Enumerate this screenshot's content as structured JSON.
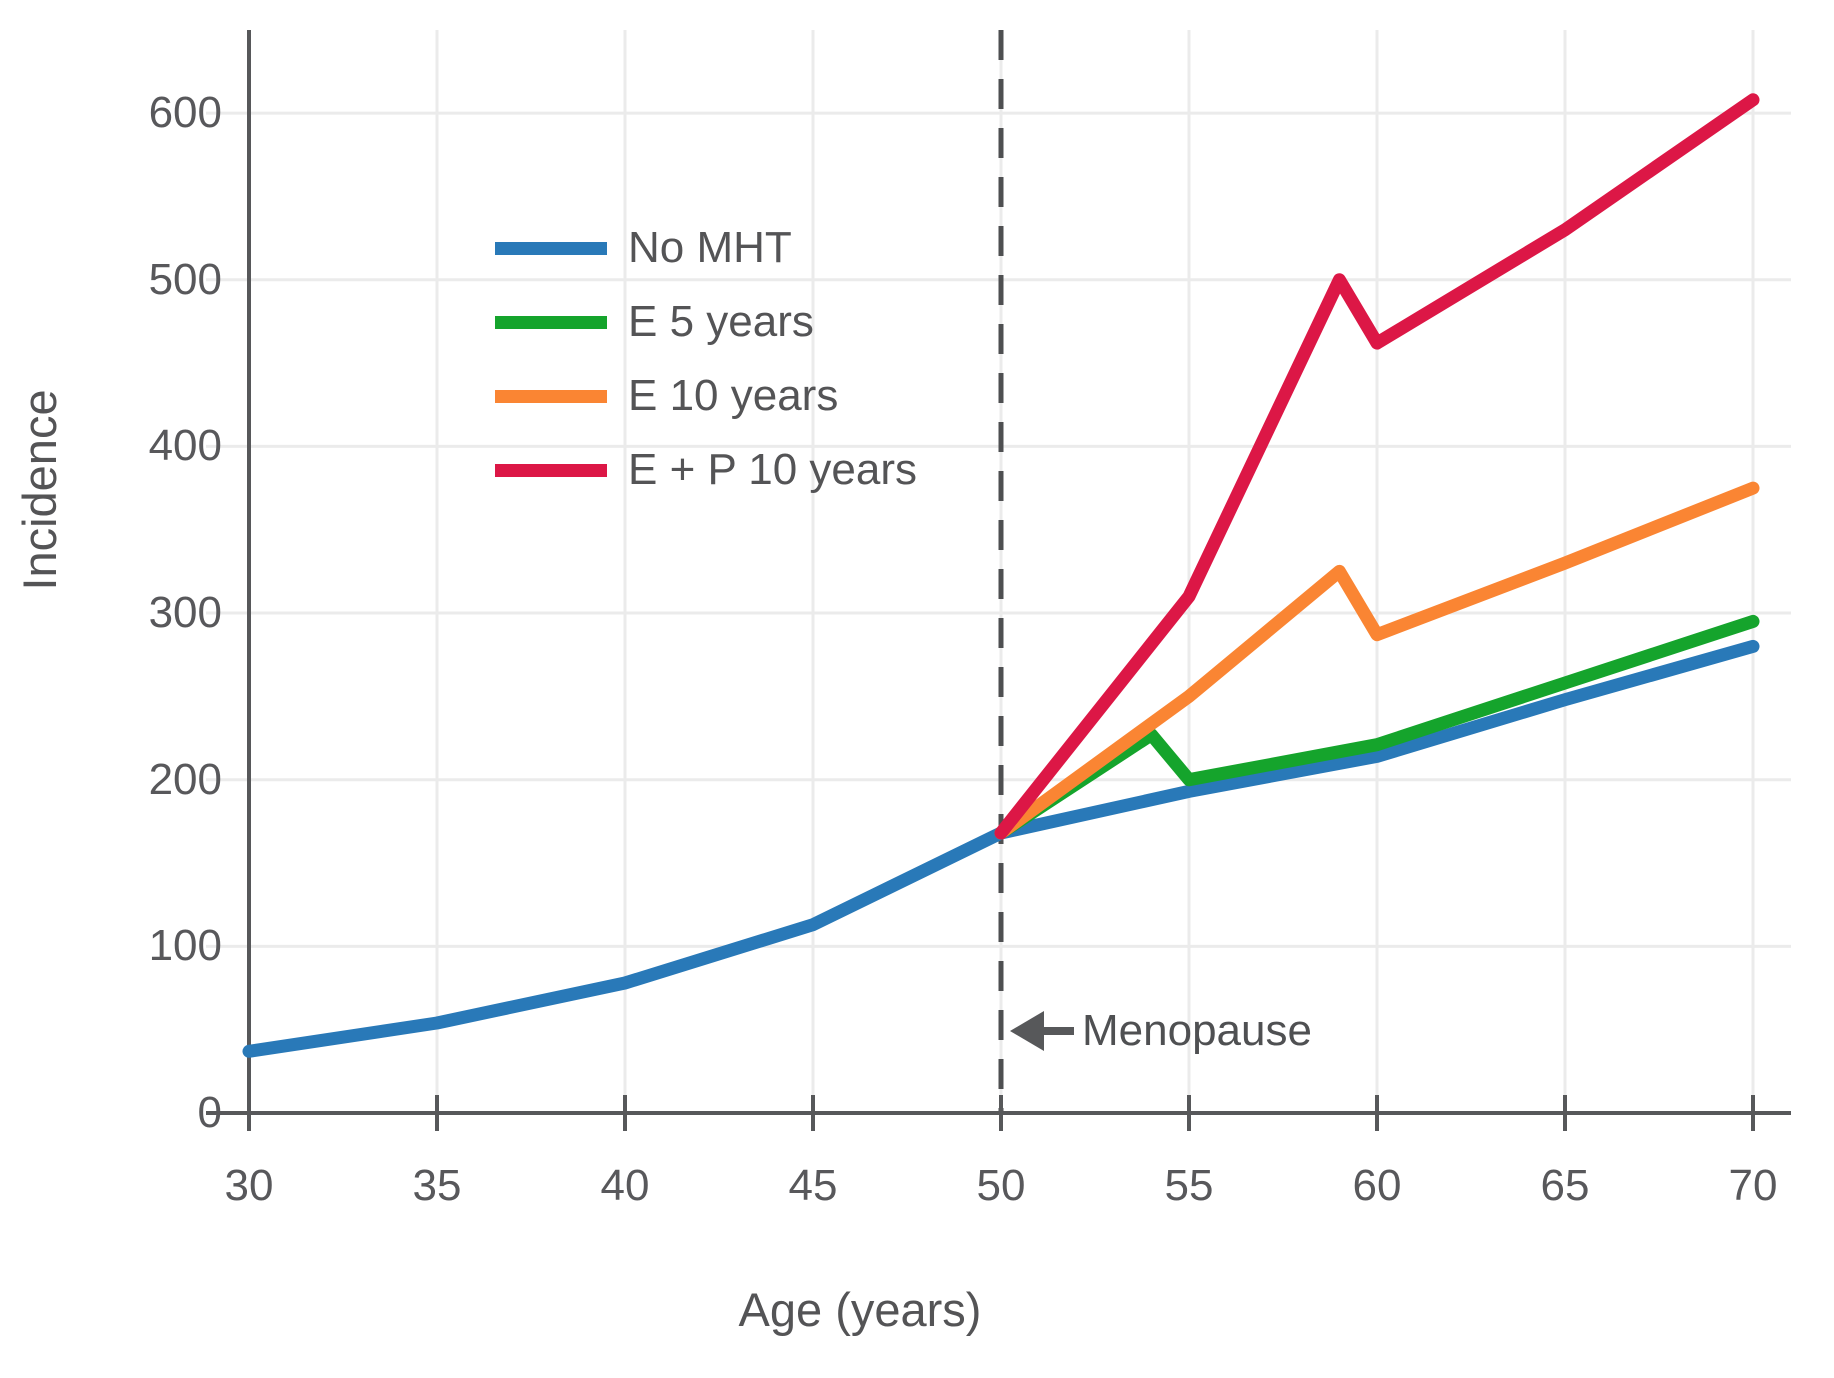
{
  "chart_data": {
    "type": "line",
    "title": "",
    "xlabel": "Age (years)",
    "ylabel": "Incidence",
    "xlim": [
      30,
      70
    ],
    "ylim": [
      0,
      650
    ],
    "x_ticks": [
      30,
      35,
      40,
      45,
      50,
      55,
      60,
      65,
      70
    ],
    "y_ticks": [
      0,
      100,
      200,
      300,
      400,
      500,
      600
    ],
    "grid": true,
    "legend_position": "upper left inside plot",
    "series": [
      {
        "name": "No MHT",
        "color": "#2979b8",
        "points": [
          [
            30,
            37
          ],
          [
            35,
            54
          ],
          [
            40,
            78
          ],
          [
            45,
            113
          ],
          [
            50,
            168
          ],
          [
            55,
            193
          ],
          [
            60,
            214
          ],
          [
            65,
            248
          ],
          [
            70,
            280
          ]
        ]
      },
      {
        "name": "E 5 years",
        "color": "#15a42c",
        "points": [
          [
            50,
            168
          ],
          [
            54,
            227
          ],
          [
            55,
            200
          ],
          [
            60,
            221
          ],
          [
            65,
            258
          ],
          [
            70,
            295
          ]
        ]
      },
      {
        "name": "E 10 years",
        "color": "#fa8533",
        "points": [
          [
            50,
            168
          ],
          [
            55,
            250
          ],
          [
            59,
            325
          ],
          [
            60,
            287
          ],
          [
            65,
            330
          ],
          [
            70,
            375
          ]
        ]
      },
      {
        "name": "E + P 10 years",
        "color": "#dc1746",
        "points": [
          [
            50,
            168
          ],
          [
            55,
            310
          ],
          [
            59,
            500
          ],
          [
            60,
            462
          ],
          [
            65,
            530
          ],
          [
            70,
            608
          ]
        ]
      }
    ],
    "annotation": {
      "label": "Menopause",
      "x": 50,
      "arrow_direction": "left"
    },
    "reference_line": {
      "x": 50,
      "style": "dashed",
      "color": "#4e4f51"
    }
  },
  "styles": {
    "grid_color": "#ebebeb",
    "axis_color": "#57585a",
    "tick_text_color": "#58585b",
    "background": "#ffffff"
  }
}
